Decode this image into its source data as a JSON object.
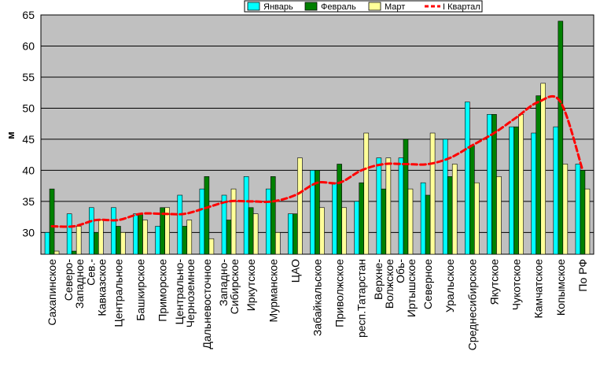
{
  "colors": {
    "plot_bg": "#c0c0c0",
    "gridline": "#000000",
    "jan": "#00ffff",
    "feb": "#008000",
    "mar": "#ffff99",
    "quarter": "#ff0000"
  },
  "chart_data": {
    "type": "bar",
    "ylabel": "м",
    "ylim": [
      26.5,
      65
    ],
    "yticks": [
      30,
      35,
      40,
      45,
      50,
      55,
      60,
      65
    ],
    "grid": true,
    "legend_position": "top-right",
    "categories": [
      [
        "Сахапинское"
      ],
      [
        "Северо-",
        "Западное"
      ],
      [
        "Сев.-",
        "Кавказское"
      ],
      [
        "Центральное"
      ],
      [
        "Башкирское"
      ],
      [
        "Приморское"
      ],
      [
        "Центрально-",
        "Черноземное"
      ],
      [
        "Дальневосточное"
      ],
      [
        "Западно-",
        "Сибирское"
      ],
      [
        "Иркутское"
      ],
      [
        "Мурманское"
      ],
      [
        "ЦАО"
      ],
      [
        "Забайкальское"
      ],
      [
        "Приволжское"
      ],
      [
        "респ.Татарстан"
      ],
      [
        "Верхне-",
        "Волжское"
      ],
      [
        "Обь-",
        "Иртышское"
      ],
      [
        "Северное"
      ],
      [
        "Уральское"
      ],
      [
        "Среднесибирское"
      ],
      [
        "Якутское"
      ],
      [
        "Чукотское"
      ],
      [
        "Камчатское"
      ],
      [
        "Копымское"
      ],
      [
        "По РФ"
      ]
    ],
    "series": [
      {
        "name": "Январь",
        "kind": "bar",
        "color": "#00ffff",
        "values": [
          30,
          33,
          34,
          34,
          33,
          31,
          36,
          37,
          36,
          39,
          37,
          33,
          40,
          38,
          35,
          42,
          42,
          38,
          45,
          51,
          49,
          47,
          46,
          47,
          41
        ]
      },
      {
        "name": "Февраль",
        "kind": "bar",
        "color": "#008000",
        "values": [
          37,
          27,
          30,
          31,
          33,
          34,
          31,
          39,
          32,
          34,
          39,
          33,
          40,
          41,
          38,
          37,
          45,
          36,
          39,
          44,
          49,
          47,
          52,
          64,
          40
        ]
      },
      {
        "name": "Март",
        "kind": "bar",
        "color": "#ffff99",
        "values": [
          27,
          31,
          32,
          30,
          32,
          34,
          32,
          29,
          37,
          33,
          30,
          42,
          34,
          34,
          46,
          42,
          37,
          46,
          41,
          38,
          39,
          49,
          54,
          41,
          37
        ]
      },
      {
        "name": "I Квартал",
        "kind": "line",
        "color": "#ff0000",
        "values": [
          31,
          31,
          32,
          32,
          33,
          33,
          33,
          34,
          35,
          35,
          35,
          36,
          38,
          38,
          40,
          41,
          41,
          41,
          42,
          44,
          46,
          48.5,
          51,
          51,
          40
        ]
      }
    ]
  }
}
